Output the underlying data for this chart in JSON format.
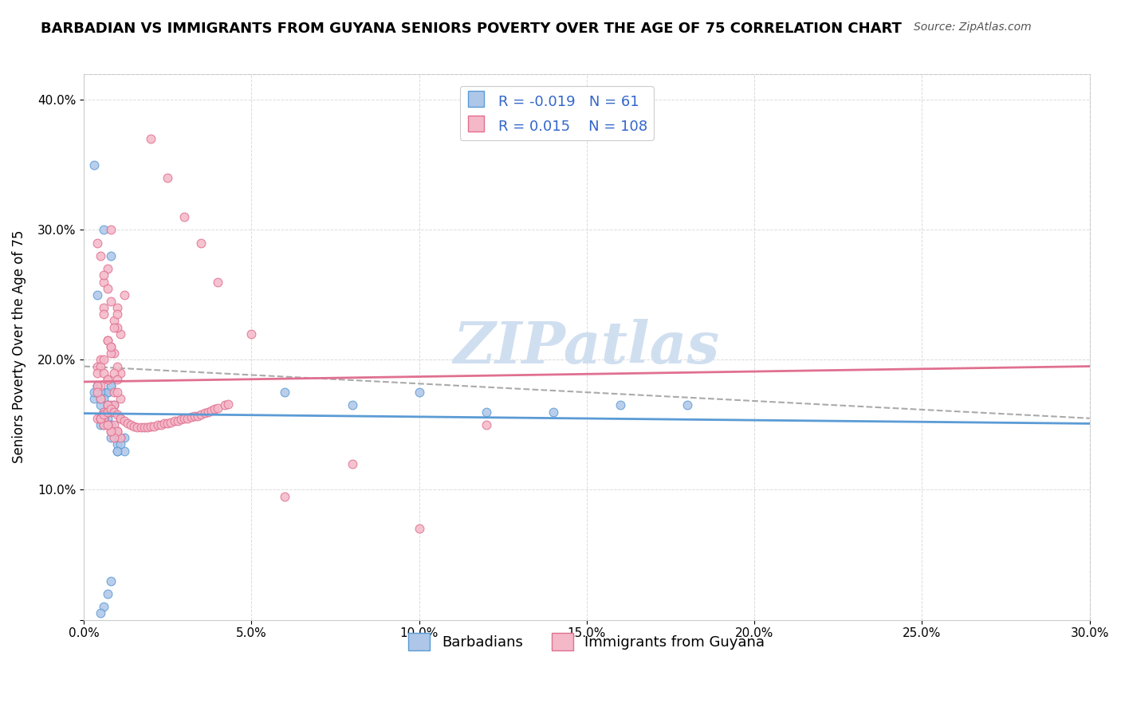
{
  "title": "BARBADIAN VS IMMIGRANTS FROM GUYANA SENIORS POVERTY OVER THE AGE OF 75 CORRELATION CHART",
  "source": "Source: ZipAtlas.com",
  "xlabel_ticks": [
    "0.0%",
    "30.0%"
  ],
  "ylabel_ticks": [
    "0%",
    "10.0%",
    "20.0%",
    "30.0%",
    "40.0%"
  ],
  "xlim": [
    0.0,
    0.3
  ],
  "ylim": [
    0.0,
    0.42
  ],
  "legend_entries": [
    {
      "label": "Barbadians",
      "R": "-0.019",
      "N": "61",
      "color": "#aec6e8",
      "line_color": "#5b9bd5"
    },
    {
      "label": "Immigrants from Guyana",
      "R": "0.015",
      "N": "108",
      "color": "#f4b8c8",
      "line_color": "#e07090"
    }
  ],
  "watermark": "ZIPatlas",
  "watermark_color": "#d0dff0",
  "background_color": "#ffffff",
  "grid_color": "#cccccc",
  "barbadians_x": [
    0.005,
    0.008,
    0.004,
    0.006,
    0.003,
    0.007,
    0.01,
    0.005,
    0.009,
    0.006,
    0.008,
    0.004,
    0.012,
    0.01,
    0.007,
    0.006,
    0.005,
    0.009,
    0.003,
    0.011,
    0.007,
    0.008,
    0.005,
    0.006,
    0.01,
    0.004,
    0.007,
    0.009,
    0.006,
    0.008,
    0.012,
    0.005,
    0.007,
    0.01,
    0.006,
    0.004,
    0.008,
    0.011,
    0.009,
    0.005,
    0.006,
    0.007,
    0.003,
    0.008,
    0.01,
    0.005,
    0.007,
    0.009,
    0.006,
    0.004,
    0.06,
    0.08,
    0.1,
    0.12,
    0.14,
    0.16,
    0.18,
    0.008,
    0.007,
    0.006,
    0.005
  ],
  "barbadians_y": [
    0.175,
    0.28,
    0.25,
    0.3,
    0.35,
    0.175,
    0.14,
    0.155,
    0.165,
    0.175,
    0.18,
    0.175,
    0.14,
    0.13,
    0.155,
    0.16,
    0.15,
    0.145,
    0.17,
    0.14,
    0.175,
    0.18,
    0.155,
    0.16,
    0.135,
    0.175,
    0.165,
    0.145,
    0.155,
    0.15,
    0.13,
    0.175,
    0.16,
    0.14,
    0.17,
    0.18,
    0.15,
    0.135,
    0.145,
    0.165,
    0.155,
    0.16,
    0.175,
    0.14,
    0.13,
    0.17,
    0.165,
    0.145,
    0.15,
    0.18,
    0.175,
    0.165,
    0.175,
    0.16,
    0.16,
    0.165,
    0.165,
    0.03,
    0.02,
    0.01,
    0.005
  ],
  "guyana_x": [
    0.005,
    0.008,
    0.012,
    0.006,
    0.01,
    0.007,
    0.004,
    0.009,
    0.011,
    0.006,
    0.008,
    0.005,
    0.007,
    0.01,
    0.006,
    0.009,
    0.004,
    0.008,
    0.011,
    0.007,
    0.006,
    0.01,
    0.005,
    0.008,
    0.007,
    0.009,
    0.004,
    0.006,
    0.01,
    0.008,
    0.005,
    0.007,
    0.009,
    0.006,
    0.011,
    0.004,
    0.008,
    0.01,
    0.007,
    0.005,
    0.006,
    0.009,
    0.004,
    0.008,
    0.011,
    0.007,
    0.005,
    0.01,
    0.006,
    0.009,
    0.008,
    0.004,
    0.007,
    0.011,
    0.005,
    0.006,
    0.01,
    0.009,
    0.008,
    0.007,
    0.06,
    0.08,
    0.1,
    0.12,
    0.02,
    0.025,
    0.03,
    0.035,
    0.04,
    0.05,
    0.005,
    0.006,
    0.007,
    0.008,
    0.009,
    0.01,
    0.011,
    0.012,
    0.013,
    0.014,
    0.015,
    0.016,
    0.017,
    0.018,
    0.019,
    0.02,
    0.021,
    0.022,
    0.023,
    0.024,
    0.025,
    0.026,
    0.027,
    0.028,
    0.029,
    0.03,
    0.031,
    0.032,
    0.033,
    0.034,
    0.035,
    0.036,
    0.037,
    0.038,
    0.039,
    0.04,
    0.042,
    0.043,
    0.009,
    0.01
  ],
  "guyana_y": [
    0.28,
    0.3,
    0.25,
    0.26,
    0.24,
    0.27,
    0.29,
    0.23,
    0.22,
    0.24,
    0.21,
    0.2,
    0.215,
    0.225,
    0.235,
    0.205,
    0.195,
    0.245,
    0.19,
    0.255,
    0.265,
    0.235,
    0.195,
    0.205,
    0.215,
    0.225,
    0.19,
    0.2,
    0.195,
    0.21,
    0.18,
    0.185,
    0.175,
    0.19,
    0.17,
    0.18,
    0.165,
    0.175,
    0.185,
    0.17,
    0.16,
    0.165,
    0.175,
    0.16,
    0.155,
    0.165,
    0.155,
    0.145,
    0.155,
    0.15,
    0.145,
    0.155,
    0.15,
    0.14,
    0.155,
    0.15,
    0.145,
    0.14,
    0.145,
    0.15,
    0.095,
    0.12,
    0.07,
    0.15,
    0.37,
    0.34,
    0.31,
    0.29,
    0.26,
    0.22,
    0.155,
    0.158,
    0.16,
    0.162,
    0.16,
    0.158,
    0.155,
    0.153,
    0.151,
    0.15,
    0.149,
    0.148,
    0.148,
    0.148,
    0.148,
    0.149,
    0.149,
    0.15,
    0.15,
    0.151,
    0.151,
    0.152,
    0.153,
    0.153,
    0.154,
    0.155,
    0.155,
    0.156,
    0.157,
    0.157,
    0.158,
    0.159,
    0.16,
    0.161,
    0.162,
    0.163,
    0.165,
    0.166,
    0.19,
    0.185
  ]
}
